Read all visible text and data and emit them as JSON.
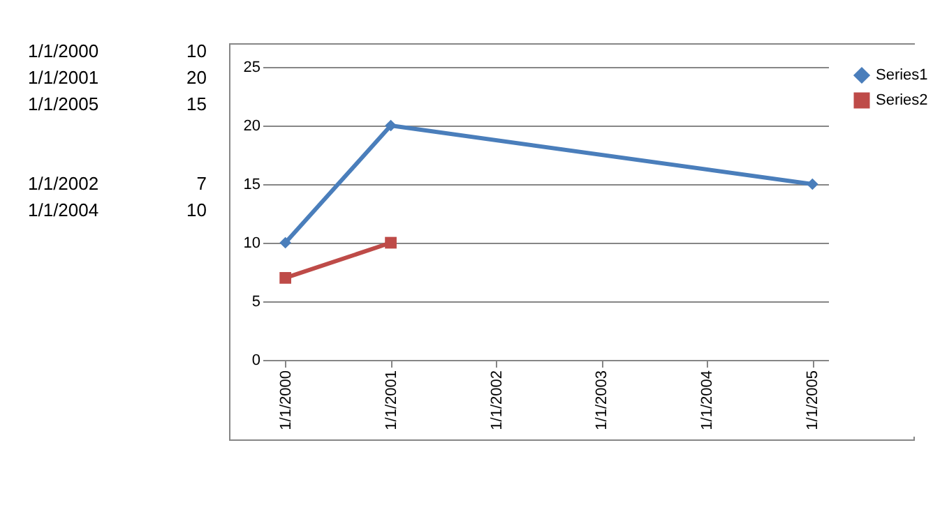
{
  "chart_data": {
    "type": "line",
    "categories": [
      "1/1/2000",
      "1/1/2001",
      "1/1/2002",
      "1/1/2003",
      "1/1/2004",
      "1/1/2005"
    ],
    "series": [
      {
        "name": "Series1",
        "color": "#4a7ebb",
        "marker": "diamond",
        "values": [
          10,
          20,
          null,
          null,
          null,
          15
        ]
      },
      {
        "name": "Series2",
        "color": "#be4b48",
        "marker": "square",
        "values": [
          7,
          10,
          null,
          null,
          null,
          null
        ]
      }
    ],
    "ylim": [
      0,
      25
    ],
    "yticks": [
      0,
      5,
      10,
      15,
      20,
      25
    ],
    "grid": "y",
    "legend": "right",
    "line_style": "solid",
    "annotations": [
      "1/1/2000",
      "10",
      "1/1/2001",
      "20",
      "1/1/2005",
      "15",
      "1/1/2002",
      "7",
      "1/1/2004",
      "10"
    ]
  }
}
